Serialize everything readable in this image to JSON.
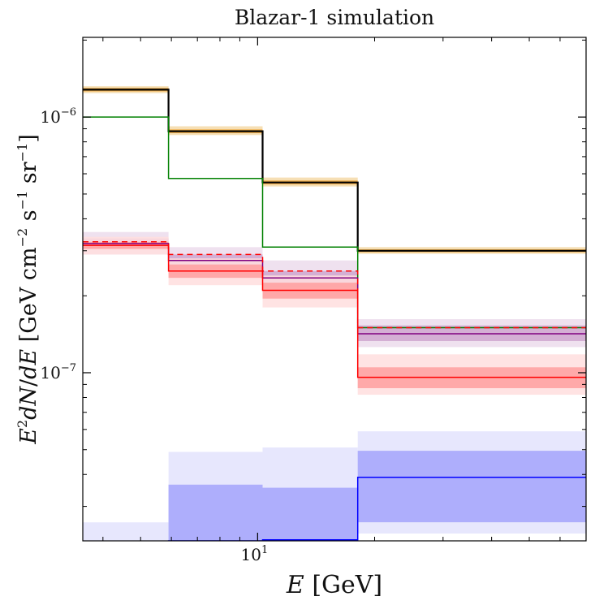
{
  "chart_data": {
    "type": "step",
    "title": "Blazar-1 simulation",
    "xlabel": "E [GeV]",
    "ylabel": "E²dN/dE [GeV cm⁻² s⁻¹ sr⁻¹]",
    "xscale": "log",
    "yscale": "log",
    "xlim": [
      3.55,
      70
    ],
    "ylim": [
      2.2e-08,
      2.05e-06
    ],
    "x_tick_labels": [
      {
        "value": 10,
        "base": "10",
        "exp": "1"
      }
    ],
    "y_tick_labels": [
      {
        "value": 1e-07,
        "base": "10",
        "exp": "−7"
      },
      {
        "value": 1e-06,
        "base": "10",
        "exp": "−6"
      }
    ],
    "grid": false,
    "bin_edges": [
      3.55,
      5.9,
      10.3,
      18.1,
      70
    ],
    "series": [
      {
        "color": "#000000",
        "style": "solid",
        "values": [
          1.28e-06,
          8.8e-07,
          5.55e-07,
          3e-07
        ],
        "bands": [
          {
            "lo": [
              1.24e-06,
              8.5e-07,
              5.35e-07,
              2.92e-07
            ],
            "hi": [
              1.32e-06,
              9.2e-07,
              5.8e-07,
              3.1e-07
            ],
            "color": "#f5d9a8"
          },
          {
            "lo": [
              1.26e-06,
              8.65e-07,
              5.45e-07,
              2.96e-07
            ],
            "hi": [
              1.3e-06,
              8.95e-07,
              5.65e-07,
              3.04e-07
            ],
            "color": "#f0a83c"
          }
        ]
      },
      {
        "color": "#008000",
        "style": "solid",
        "values": [
          1e-06,
          5.75e-07,
          3.1e-07,
          1.5e-07
        ],
        "bands": []
      },
      {
        "color": "#800080",
        "style": "solid",
        "values": [
          3.2e-07,
          2.75e-07,
          2.35e-07,
          1.42e-07
        ],
        "bands": [
          {
            "lo": [
              2.9e-07,
              2.4e-07,
              2e-07,
              1.26e-07
            ],
            "hi": [
              3.55e-07,
              3.1e-07,
              2.75e-07,
              1.62e-07
            ],
            "color": "#ecdcec"
          },
          {
            "lo": [
              3.05e-07,
              2.55e-07,
              2.15e-07,
              1.33e-07
            ],
            "hi": [
              3.35e-07,
              2.9e-07,
              2.5e-07,
              1.53e-07
            ],
            "color": "#cfa6cf"
          }
        ]
      },
      {
        "color": "#ff0000",
        "style": "dashed",
        "values": [
          3.25e-07,
          2.9e-07,
          2.5e-07,
          1.5e-07
        ],
        "bands": []
      },
      {
        "color": "#ff0000",
        "style": "solid",
        "values": [
          3.15e-07,
          2.5e-07,
          2.1e-07,
          9.6e-08
        ],
        "bands": [
          {
            "lo": [
              2.9e-07,
              2.2e-07,
              1.8e-07,
              8.2e-08
            ],
            "hi": [
              3.4e-07,
              2.8e-07,
              2.4e-07,
              1.18e-07
            ],
            "color": "#ffdede"
          },
          {
            "lo": [
              3.05e-07,
              2.35e-07,
              1.95e-07,
              8.7e-08
            ],
            "hi": [
              3.25e-07,
              2.65e-07,
              2.25e-07,
              1.05e-07
            ],
            "color": "#ff9f9f"
          }
        ]
      },
      {
        "color": "#0000ff",
        "style": "solid",
        "values": [
          2e-08,
          2.2e-08,
          2.22e-08,
          3.9e-08
        ],
        "bands": [
          {
            "lo": [
              2e-08,
              2e-08,
              2e-08,
              2.35e-08
            ],
            "hi": [
              2.6e-08,
              4.9e-08,
              5.1e-08,
              5.9e-08
            ],
            "color": "#e3e3fd"
          },
          {
            "lo": [
              2e-08,
              2e-08,
              2e-08,
              2.6e-08
            ],
            "hi": [
              2e-08,
              3.65e-08,
              3.55e-08,
              4.95e-08
            ],
            "color": "#a3a3fb"
          }
        ]
      }
    ]
  }
}
